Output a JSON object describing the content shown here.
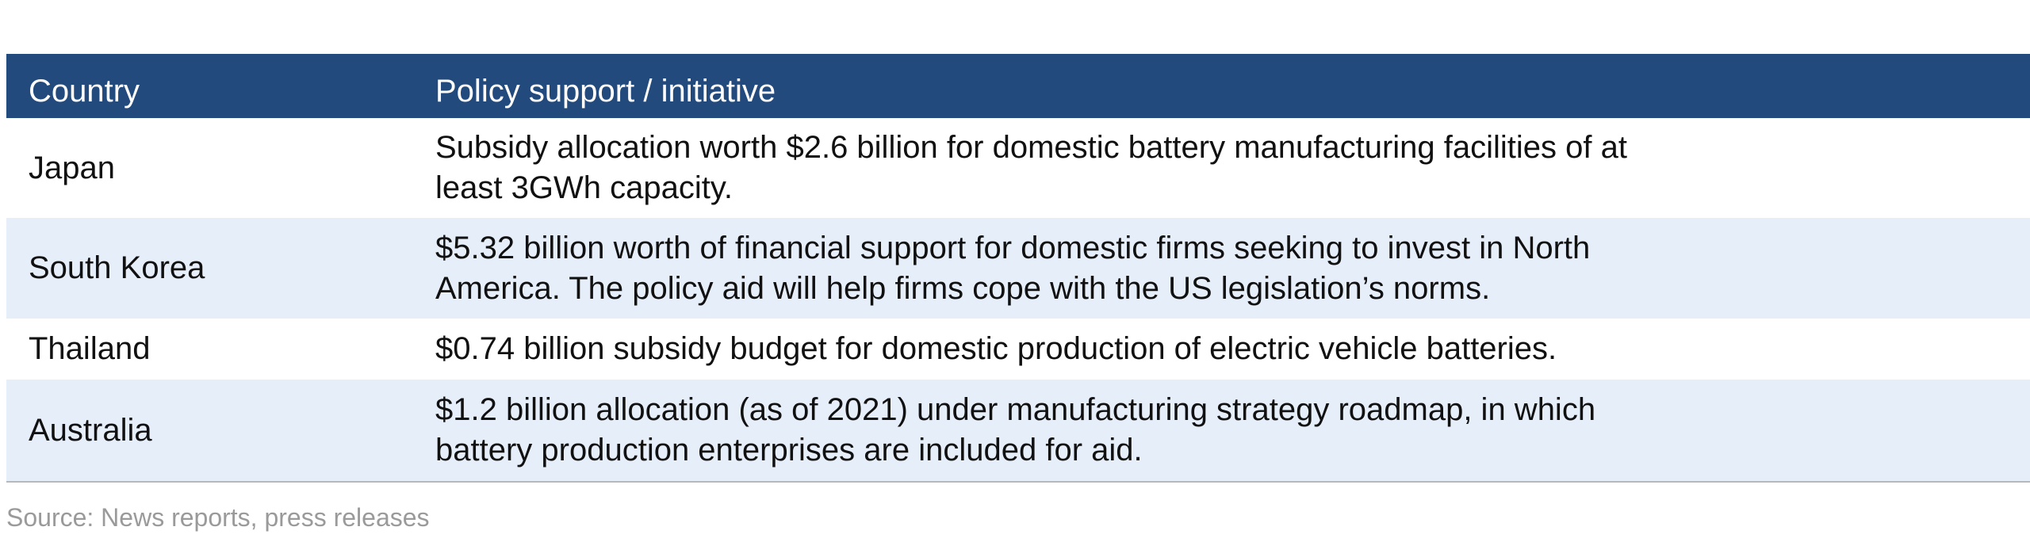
{
  "table": {
    "headers": {
      "country": "Country",
      "policy": "Policy support / initiative"
    },
    "rows": [
      {
        "country": "Japan",
        "policy": "Subsidy allocation worth $2.6 billion for domestic battery manufacturing facilities of at least 3GWh capacity."
      },
      {
        "country": "South Korea",
        "policy": "$5.32 billion worth of financial support for domestic firms seeking to invest in North America. The policy aid will help firms cope with the US legislation’s norms."
      },
      {
        "country": "Thailand",
        "policy": "$0.74 billion subsidy budget for domestic production of electric vehicle batteries."
      },
      {
        "country": "Australia",
        "policy": "$1.2 billion allocation (as of 2021) under manufacturing strategy roadmap, in which battery production enterprises are included for aid."
      }
    ]
  },
  "source": "Source: News reports, press releases",
  "colors": {
    "header_bg": "#234a7d",
    "header_text": "#ffffff",
    "alt_row_bg": "#e6eefa",
    "source_text": "#9a9a9a"
  }
}
